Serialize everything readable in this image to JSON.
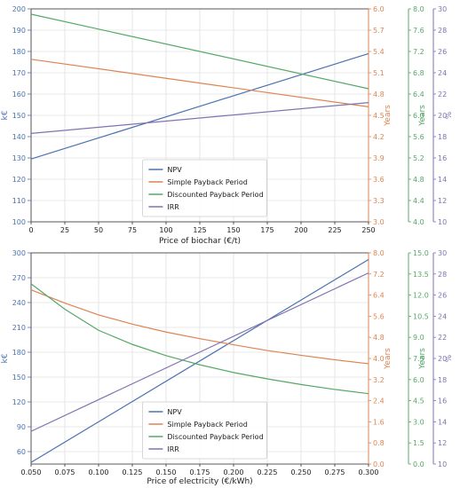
{
  "chart_data": [
    {
      "type": "line",
      "xlabel": "Price of biochar (€/t)",
      "xlim": [
        0,
        250
      ],
      "xticks": [
        "0",
        "25",
        "50",
        "75",
        "100",
        "125",
        "150",
        "175",
        "200",
        "225",
        "250"
      ],
      "axes": [
        {
          "id": "npv",
          "label": "k€",
          "color": "#4c72b0",
          "lim": [
            100,
            200
          ],
          "ticks": [
            "100",
            "110",
            "120",
            "130",
            "140",
            "150",
            "160",
            "170",
            "180",
            "190",
            "200"
          ]
        },
        {
          "id": "spp",
          "label": "Years",
          "color": "#dd8452",
          "lim": [
            3.0,
            6.0
          ],
          "ticks": [
            "3.0",
            "3.3",
            "3.6",
            "3.9",
            "4.2",
            "4.5",
            "4.8",
            "5.1",
            "5.4",
            "5.7",
            "6.0"
          ]
        },
        {
          "id": "dpp",
          "label": "Years",
          "color": "#55a868",
          "lim": [
            4.0,
            8.0
          ],
          "ticks": [
            "4.0",
            "4.4",
            "4.8",
            "5.2",
            "5.6",
            "6.0",
            "6.4",
            "6.8",
            "7.2",
            "7.6",
            "8.0"
          ]
        },
        {
          "id": "irr",
          "label": "%",
          "color": "#8172b2",
          "lim": [
            10,
            30
          ],
          "ticks": [
            "10",
            "12",
            "14",
            "16",
            "18",
            "20",
            "22",
            "24",
            "26",
            "28",
            "30"
          ]
        }
      ],
      "series": [
        {
          "name": "NPV",
          "axis": "npv",
          "x": [
            0,
            250
          ],
          "values": [
            129.5,
            179
          ]
        },
        {
          "name": "Simple Payback Period",
          "axis": "spp",
          "x": [
            0,
            250
          ],
          "values": [
            5.29,
            4.62
          ]
        },
        {
          "name": "Discounted Payback Period",
          "axis": "dpp",
          "x": [
            0,
            250
          ],
          "values": [
            7.9,
            6.5
          ]
        },
        {
          "name": "IRR",
          "axis": "irr",
          "x": [
            0,
            250
          ],
          "values": [
            18.3,
            21.2
          ]
        }
      ],
      "legend": "lower-center",
      "grid": true
    },
    {
      "type": "line",
      "xlabel": "Price of electricity (€/kWh)",
      "xlim": [
        0.05,
        0.3
      ],
      "xticks": [
        "0.050",
        "0.075",
        "0.100",
        "0.125",
        "0.150",
        "0.175",
        "0.200",
        "0.225",
        "0.250",
        "0.275",
        "0.300"
      ],
      "axes": [
        {
          "id": "npv",
          "label": "k€",
          "color": "#4c72b0",
          "lim": [
            45,
            300
          ],
          "ticks": [
            "60",
            "90",
            "120",
            "150",
            "180",
            "210",
            "240",
            "270",
            "300"
          ]
        },
        {
          "id": "spp",
          "label": "Years",
          "color": "#dd8452",
          "lim": [
            0.0,
            8.0
          ],
          "ticks": [
            "0.0",
            "0.8",
            "1.6",
            "2.4",
            "3.2",
            "4.0",
            "4.8",
            "5.6",
            "6.4",
            "7.2",
            "8.0"
          ]
        },
        {
          "id": "dpp",
          "label": "Years",
          "color": "#55a868",
          "lim": [
            0.0,
            15.0
          ],
          "ticks": [
            "0.0",
            "1.5",
            "3.0",
            "4.5",
            "6.0",
            "7.5",
            "9.0",
            "10.5",
            "12.0",
            "13.5",
            "15.0"
          ]
        },
        {
          "id": "irr",
          "label": "%",
          "color": "#8172b2",
          "lim": [
            10,
            30
          ],
          "ticks": [
            "10",
            "12",
            "14",
            "16",
            "18",
            "20",
            "22",
            "24",
            "26",
            "28",
            "30"
          ]
        }
      ],
      "series": [
        {
          "name": "NPV",
          "axis": "npv",
          "x": [
            0.05,
            0.3
          ],
          "values": [
            47,
            292
          ]
        },
        {
          "name": "Simple Payback Period",
          "axis": "spp",
          "x": [
            0.05,
            0.075,
            0.1,
            0.125,
            0.15,
            0.175,
            0.2,
            0.225,
            0.25,
            0.275,
            0.3
          ],
          "values": [
            6.6,
            6.1,
            5.65,
            5.3,
            5.0,
            4.75,
            4.52,
            4.3,
            4.12,
            3.95,
            3.8
          ]
        },
        {
          "name": "Discounted Payback Period",
          "axis": "dpp",
          "x": [
            0.05,
            0.075,
            0.1,
            0.125,
            0.15,
            0.175,
            0.2,
            0.225,
            0.25,
            0.275,
            0.3
          ],
          "values": [
            12.8,
            11.0,
            9.5,
            8.5,
            7.7,
            7.05,
            6.5,
            6.05,
            5.65,
            5.3,
            5.0
          ]
        },
        {
          "name": "IRR",
          "axis": "irr",
          "x": [
            0.05,
            0.3
          ],
          "values": [
            13.1,
            28.1
          ]
        }
      ],
      "legend": "lower-center",
      "grid": true
    }
  ]
}
